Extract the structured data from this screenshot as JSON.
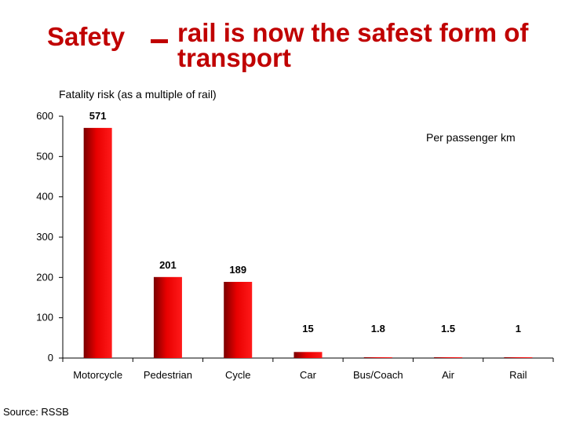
{
  "header": {
    "title_left": "Safety",
    "title_right": "rail is now the safest form of transport"
  },
  "chart_data": {
    "type": "bar",
    "ylabel": "Fatality risk (as a multiple of rail)",
    "annotation": "Per passenger km",
    "categories": [
      "Motorcycle",
      "Pedestrian",
      "Cycle",
      "Car",
      "Bus/Coach",
      "Air",
      "Rail"
    ],
    "values": [
      571,
      201,
      189,
      15,
      1.8,
      1.5,
      1
    ],
    "value_labels": [
      "571",
      "201",
      "189",
      "15",
      "1.8",
      "1.5",
      "1"
    ],
    "ylim": [
      0,
      600
    ],
    "yticks": [
      0,
      100,
      200,
      300,
      400,
      500,
      600
    ],
    "grid": false,
    "bar_color": "#e00000"
  },
  "footer": {
    "source": "Source: RSSB"
  }
}
